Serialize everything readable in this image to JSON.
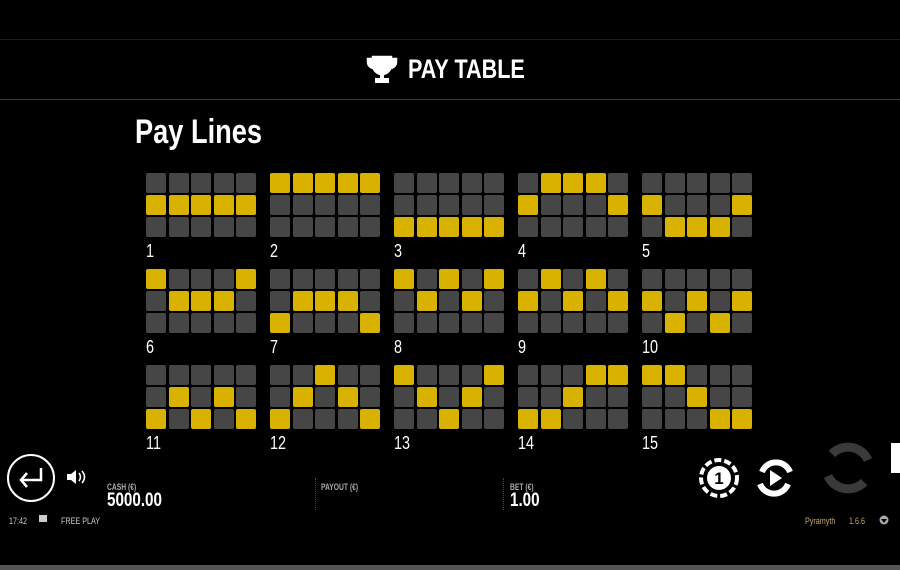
{
  "header": {
    "title": "PAY TABLE",
    "icon": "trophy-icon"
  },
  "section_title": "Pay Lines",
  "paylines": [
    {
      "n": "1",
      "p": [
        [
          0,
          0,
          0,
          0,
          0
        ],
        [
          1,
          1,
          1,
          1,
          1
        ],
        [
          0,
          0,
          0,
          0,
          0
        ]
      ]
    },
    {
      "n": "2",
      "p": [
        [
          1,
          1,
          1,
          1,
          1
        ],
        [
          0,
          0,
          0,
          0,
          0
        ],
        [
          0,
          0,
          0,
          0,
          0
        ]
      ]
    },
    {
      "n": "3",
      "p": [
        [
          0,
          0,
          0,
          0,
          0
        ],
        [
          0,
          0,
          0,
          0,
          0
        ],
        [
          1,
          1,
          1,
          1,
          1
        ]
      ]
    },
    {
      "n": "4",
      "p": [
        [
          0,
          1,
          1,
          1,
          0
        ],
        [
          1,
          0,
          0,
          0,
          1
        ],
        [
          0,
          0,
          0,
          0,
          0
        ]
      ]
    },
    {
      "n": "5",
      "p": [
        [
          0,
          0,
          0,
          0,
          0
        ],
        [
          1,
          0,
          0,
          0,
          1
        ],
        [
          0,
          1,
          1,
          1,
          0
        ]
      ]
    },
    {
      "n": "6",
      "p": [
        [
          1,
          0,
          0,
          0,
          1
        ],
        [
          0,
          1,
          1,
          1,
          0
        ],
        [
          0,
          0,
          0,
          0,
          0
        ]
      ]
    },
    {
      "n": "7",
      "p": [
        [
          0,
          0,
          0,
          0,
          0
        ],
        [
          0,
          1,
          1,
          1,
          0
        ],
        [
          1,
          0,
          0,
          0,
          1
        ]
      ]
    },
    {
      "n": "8",
      "p": [
        [
          1,
          0,
          1,
          0,
          1
        ],
        [
          0,
          1,
          0,
          1,
          0
        ],
        [
          0,
          0,
          0,
          0,
          0
        ]
      ]
    },
    {
      "n": "9",
      "p": [
        [
          0,
          1,
          0,
          1,
          0
        ],
        [
          1,
          0,
          1,
          0,
          1
        ],
        [
          0,
          0,
          0,
          0,
          0
        ]
      ]
    },
    {
      "n": "10",
      "p": [
        [
          0,
          0,
          0,
          0,
          0
        ],
        [
          1,
          0,
          1,
          0,
          1
        ],
        [
          0,
          1,
          0,
          1,
          0
        ]
      ]
    },
    {
      "n": "11",
      "p": [
        [
          0,
          0,
          0,
          0,
          0
        ],
        [
          0,
          1,
          0,
          1,
          0
        ],
        [
          1,
          0,
          1,
          0,
          1
        ]
      ]
    },
    {
      "n": "12",
      "p": [
        [
          0,
          0,
          1,
          0,
          0
        ],
        [
          0,
          1,
          0,
          1,
          0
        ],
        [
          1,
          0,
          0,
          0,
          1
        ]
      ]
    },
    {
      "n": "13",
      "p": [
        [
          1,
          0,
          0,
          0,
          1
        ],
        [
          0,
          1,
          0,
          1,
          0
        ],
        [
          0,
          0,
          1,
          0,
          0
        ]
      ]
    },
    {
      "n": "14",
      "p": [
        [
          0,
          0,
          0,
          1,
          1
        ],
        [
          0,
          0,
          1,
          0,
          0
        ],
        [
          1,
          1,
          0,
          0,
          0
        ]
      ]
    },
    {
      "n": "15",
      "p": [
        [
          1,
          1,
          0,
          0,
          0
        ],
        [
          0,
          0,
          1,
          0,
          0
        ],
        [
          0,
          0,
          0,
          1,
          1
        ]
      ]
    }
  ],
  "colors": {
    "active": "#d9b200",
    "inactive": "#464646"
  },
  "footer": {
    "cash_label": "CASH (€)",
    "cash": "5000.00",
    "payout_label": "PAYOUT (€)",
    "bet_label": "BET (€)",
    "bet": "1.00",
    "time": "17:42",
    "mode": "FREE PLAY",
    "game": "Pyramyth",
    "version": "1.6.6"
  }
}
